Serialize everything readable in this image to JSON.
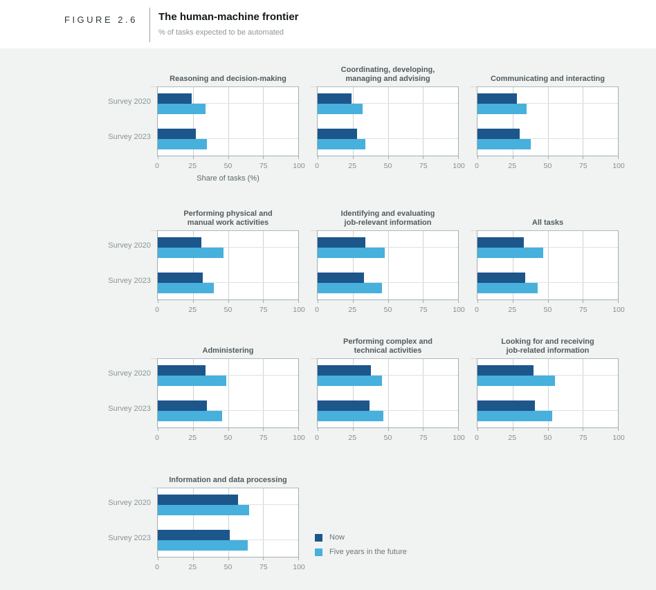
{
  "figure": {
    "label": "FIGURE 2.6",
    "title": "The human-machine frontier",
    "subtitle": "% of tasks expected to be automated"
  },
  "colors": {
    "now": "#1d568b",
    "future": "#47b0dc",
    "background": "#f0f3f2",
    "plot_background": "#ffffff",
    "plot_border": "#a4adb0",
    "gridline": "#cdd3d4"
  },
  "legend": {
    "items": [
      {
        "label": "Now",
        "color_key": "now"
      },
      {
        "label": "Five years in the future",
        "color_key": "future"
      }
    ]
  },
  "chart_data": {
    "type": "bar",
    "orientation": "horizontal",
    "xlabel": "Share of tasks (%)",
    "xlim": [
      0,
      100
    ],
    "ticks": [
      0,
      25,
      50,
      75,
      100
    ],
    "grid": "vertical-at-25-50-75",
    "legend_position": "bottom-right-of-last-panel",
    "categories": [
      "Survey 2020",
      "Survey 2023"
    ],
    "series_names": [
      "Now",
      "Five years in the future"
    ],
    "panels": [
      {
        "title": "Reasoning and decision-making",
        "series": [
          {
            "name": "Now",
            "values": [
              24,
              27
            ]
          },
          {
            "name": "Five years in the future",
            "values": [
              34,
              35
            ]
          }
        ]
      },
      {
        "title": "Coordinating, developing,\nmanaging and advising",
        "series": [
          {
            "name": "Now",
            "values": [
              24,
              28
            ]
          },
          {
            "name": "Five years in the future",
            "values": [
              32,
              34
            ]
          }
        ]
      },
      {
        "title": "Communicating and interacting",
        "series": [
          {
            "name": "Now",
            "values": [
              28,
              30
            ]
          },
          {
            "name": "Five years in the future",
            "values": [
              35,
              38
            ]
          }
        ]
      },
      {
        "title": "Performing physical and\nmanual work activities",
        "series": [
          {
            "name": "Now",
            "values": [
              31,
              32
            ]
          },
          {
            "name": "Five years in the future",
            "values": [
              47,
              40
            ]
          }
        ]
      },
      {
        "title": "Identifying and evaluating\njob-relevant information",
        "series": [
          {
            "name": "Now",
            "values": [
              34,
              33
            ]
          },
          {
            "name": "Five years in the future",
            "values": [
              48,
              46
            ]
          }
        ]
      },
      {
        "title": "All tasks",
        "series": [
          {
            "name": "Now",
            "values": [
              33,
              34
            ]
          },
          {
            "name": "Five years in the future",
            "values": [
              47,
              43
            ]
          }
        ]
      },
      {
        "title": "Administering",
        "series": [
          {
            "name": "Now",
            "values": [
              34,
              35
            ]
          },
          {
            "name": "Five years in the future",
            "values": [
              49,
              46
            ]
          }
        ]
      },
      {
        "title": "Performing complex and\ntechnical activities",
        "series": [
          {
            "name": "Now",
            "values": [
              38,
              37
            ]
          },
          {
            "name": "Five years in the future",
            "values": [
              46,
              47
            ]
          }
        ]
      },
      {
        "title": "Looking for and receiving\njob-related information",
        "series": [
          {
            "name": "Now",
            "values": [
              40,
              41
            ]
          },
          {
            "name": "Five years in the future",
            "values": [
              55,
              53
            ]
          }
        ]
      },
      {
        "title": "Information and data processing",
        "series": [
          {
            "name": "Now",
            "values": [
              57,
              51
            ]
          },
          {
            "name": "Five years in the future",
            "values": [
              65,
              64
            ]
          }
        ]
      }
    ]
  }
}
